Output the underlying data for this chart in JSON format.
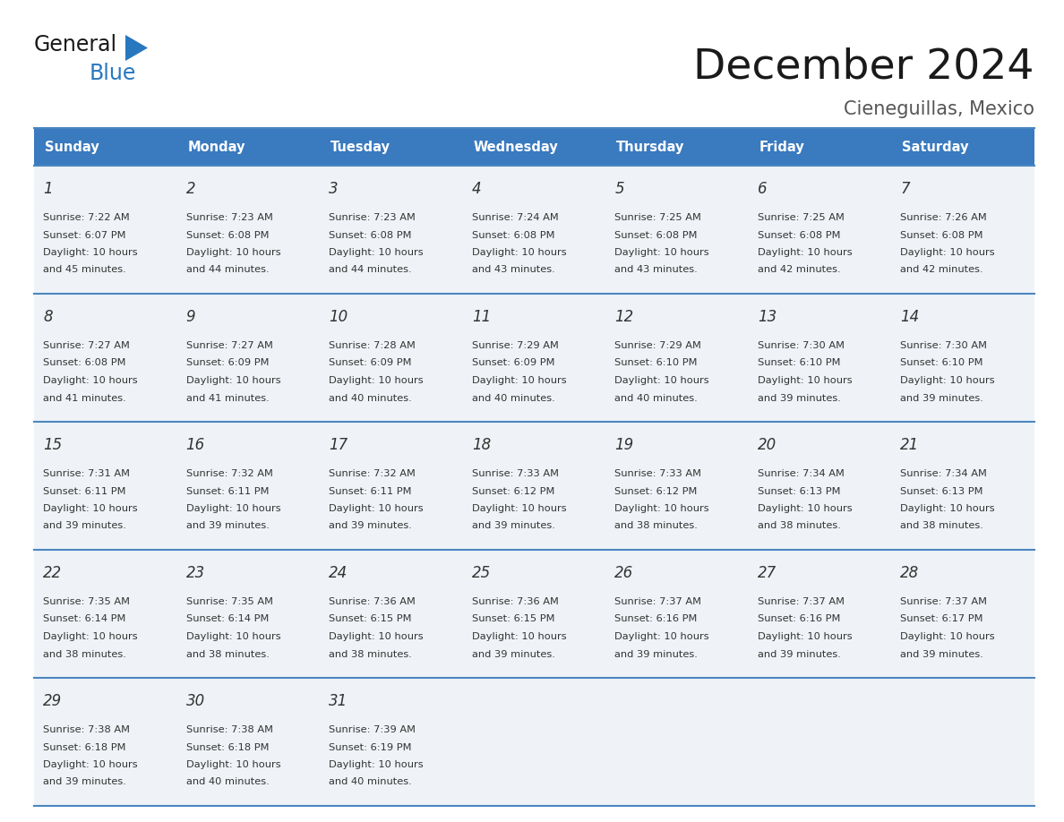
{
  "title": "December 2024",
  "subtitle": "Cieneguillas, Mexico",
  "header_color": "#3a7abf",
  "header_text_color": "#ffffff",
  "cell_bg_color": "#eff3f7",
  "border_color": "#4a86c0",
  "day_names": [
    "Sunday",
    "Monday",
    "Tuesday",
    "Wednesday",
    "Thursday",
    "Friday",
    "Saturday"
  ],
  "days": [
    {
      "day": 1,
      "col": 0,
      "row": 0,
      "sunrise": "7:22 AM",
      "sunset": "6:07 PM",
      "daylight_hours": 10,
      "daylight_minutes": 45
    },
    {
      "day": 2,
      "col": 1,
      "row": 0,
      "sunrise": "7:23 AM",
      "sunset": "6:08 PM",
      "daylight_hours": 10,
      "daylight_minutes": 44
    },
    {
      "day": 3,
      "col": 2,
      "row": 0,
      "sunrise": "7:23 AM",
      "sunset": "6:08 PM",
      "daylight_hours": 10,
      "daylight_minutes": 44
    },
    {
      "day": 4,
      "col": 3,
      "row": 0,
      "sunrise": "7:24 AM",
      "sunset": "6:08 PM",
      "daylight_hours": 10,
      "daylight_minutes": 43
    },
    {
      "day": 5,
      "col": 4,
      "row": 0,
      "sunrise": "7:25 AM",
      "sunset": "6:08 PM",
      "daylight_hours": 10,
      "daylight_minutes": 43
    },
    {
      "day": 6,
      "col": 5,
      "row": 0,
      "sunrise": "7:25 AM",
      "sunset": "6:08 PM",
      "daylight_hours": 10,
      "daylight_minutes": 42
    },
    {
      "day": 7,
      "col": 6,
      "row": 0,
      "sunrise": "7:26 AM",
      "sunset": "6:08 PM",
      "daylight_hours": 10,
      "daylight_minutes": 42
    },
    {
      "day": 8,
      "col": 0,
      "row": 1,
      "sunrise": "7:27 AM",
      "sunset": "6:08 PM",
      "daylight_hours": 10,
      "daylight_minutes": 41
    },
    {
      "day": 9,
      "col": 1,
      "row": 1,
      "sunrise": "7:27 AM",
      "sunset": "6:09 PM",
      "daylight_hours": 10,
      "daylight_minutes": 41
    },
    {
      "day": 10,
      "col": 2,
      "row": 1,
      "sunrise": "7:28 AM",
      "sunset": "6:09 PM",
      "daylight_hours": 10,
      "daylight_minutes": 40
    },
    {
      "day": 11,
      "col": 3,
      "row": 1,
      "sunrise": "7:29 AM",
      "sunset": "6:09 PM",
      "daylight_hours": 10,
      "daylight_minutes": 40
    },
    {
      "day": 12,
      "col": 4,
      "row": 1,
      "sunrise": "7:29 AM",
      "sunset": "6:10 PM",
      "daylight_hours": 10,
      "daylight_minutes": 40
    },
    {
      "day": 13,
      "col": 5,
      "row": 1,
      "sunrise": "7:30 AM",
      "sunset": "6:10 PM",
      "daylight_hours": 10,
      "daylight_minutes": 39
    },
    {
      "day": 14,
      "col": 6,
      "row": 1,
      "sunrise": "7:30 AM",
      "sunset": "6:10 PM",
      "daylight_hours": 10,
      "daylight_minutes": 39
    },
    {
      "day": 15,
      "col": 0,
      "row": 2,
      "sunrise": "7:31 AM",
      "sunset": "6:11 PM",
      "daylight_hours": 10,
      "daylight_minutes": 39
    },
    {
      "day": 16,
      "col": 1,
      "row": 2,
      "sunrise": "7:32 AM",
      "sunset": "6:11 PM",
      "daylight_hours": 10,
      "daylight_minutes": 39
    },
    {
      "day": 17,
      "col": 2,
      "row": 2,
      "sunrise": "7:32 AM",
      "sunset": "6:11 PM",
      "daylight_hours": 10,
      "daylight_minutes": 39
    },
    {
      "day": 18,
      "col": 3,
      "row": 2,
      "sunrise": "7:33 AM",
      "sunset": "6:12 PM",
      "daylight_hours": 10,
      "daylight_minutes": 39
    },
    {
      "day": 19,
      "col": 4,
      "row": 2,
      "sunrise": "7:33 AM",
      "sunset": "6:12 PM",
      "daylight_hours": 10,
      "daylight_minutes": 38
    },
    {
      "day": 20,
      "col": 5,
      "row": 2,
      "sunrise": "7:34 AM",
      "sunset": "6:13 PM",
      "daylight_hours": 10,
      "daylight_minutes": 38
    },
    {
      "day": 21,
      "col": 6,
      "row": 2,
      "sunrise": "7:34 AM",
      "sunset": "6:13 PM",
      "daylight_hours": 10,
      "daylight_minutes": 38
    },
    {
      "day": 22,
      "col": 0,
      "row": 3,
      "sunrise": "7:35 AM",
      "sunset": "6:14 PM",
      "daylight_hours": 10,
      "daylight_minutes": 38
    },
    {
      "day": 23,
      "col": 1,
      "row": 3,
      "sunrise": "7:35 AM",
      "sunset": "6:14 PM",
      "daylight_hours": 10,
      "daylight_minutes": 38
    },
    {
      "day": 24,
      "col": 2,
      "row": 3,
      "sunrise": "7:36 AM",
      "sunset": "6:15 PM",
      "daylight_hours": 10,
      "daylight_minutes": 38
    },
    {
      "day": 25,
      "col": 3,
      "row": 3,
      "sunrise": "7:36 AM",
      "sunset": "6:15 PM",
      "daylight_hours": 10,
      "daylight_minutes": 39
    },
    {
      "day": 26,
      "col": 4,
      "row": 3,
      "sunrise": "7:37 AM",
      "sunset": "6:16 PM",
      "daylight_hours": 10,
      "daylight_minutes": 39
    },
    {
      "day": 27,
      "col": 5,
      "row": 3,
      "sunrise": "7:37 AM",
      "sunset": "6:16 PM",
      "daylight_hours": 10,
      "daylight_minutes": 39
    },
    {
      "day": 28,
      "col": 6,
      "row": 3,
      "sunrise": "7:37 AM",
      "sunset": "6:17 PM",
      "daylight_hours": 10,
      "daylight_minutes": 39
    },
    {
      "day": 29,
      "col": 0,
      "row": 4,
      "sunrise": "7:38 AM",
      "sunset": "6:18 PM",
      "daylight_hours": 10,
      "daylight_minutes": 39
    },
    {
      "day": 30,
      "col": 1,
      "row": 4,
      "sunrise": "7:38 AM",
      "sunset": "6:18 PM",
      "daylight_hours": 10,
      "daylight_minutes": 40
    },
    {
      "day": 31,
      "col": 2,
      "row": 4,
      "sunrise": "7:39 AM",
      "sunset": "6:19 PM",
      "daylight_hours": 10,
      "daylight_minutes": 40
    }
  ],
  "n_rows": 5,
  "n_cols": 7,
  "fig_width": 11.88,
  "fig_height": 9.18,
  "dpi": 100
}
